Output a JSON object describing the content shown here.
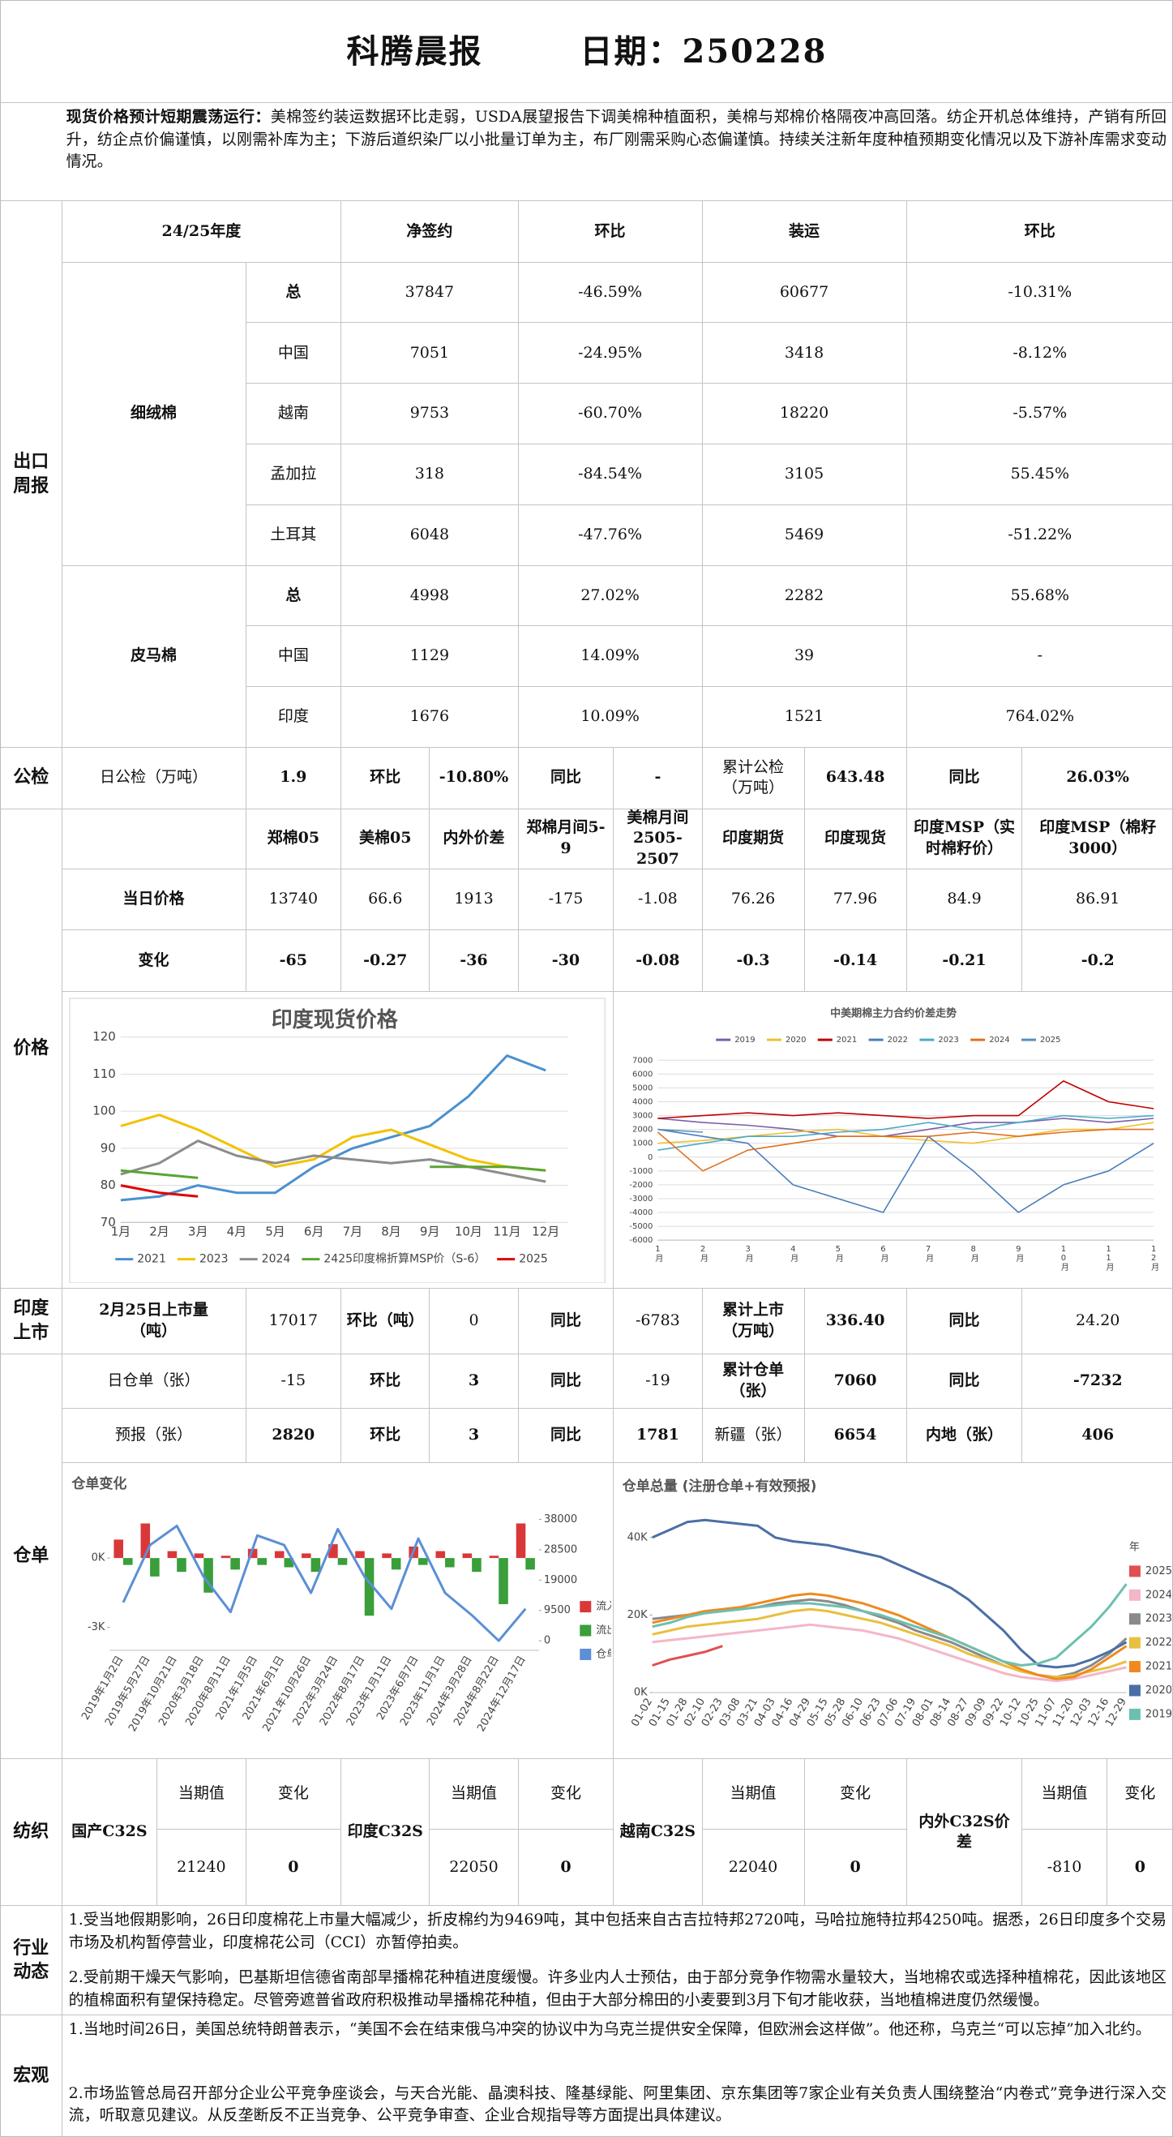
{
  "header": {
    "title": "科腾晨报",
    "date": "日期：250228"
  },
  "summary": {
    "label": "现货价格预计短期震荡运行：",
    "text": "美棉签约装运数据环比走弱，USDA展望报告下调美棉种植面积，美棉与郑棉价格隔夜冲高回落。纺企开机总体维持，产销有所回升，纺企点价偏谨慎，以刚需补库为主；下游后道织染厂以小批量订单为主，布厂刚需采购心态偏谨慎。持续关注新年度种植预期变化情况以及下游补库需求变动情况。"
  },
  "sections": {
    "export": "出口周报",
    "inspection": "公检",
    "price": "价格",
    "listing": "印度上市",
    "warehouse": "仓单",
    "textile": "纺织",
    "industry": "行业动态",
    "macro": "宏观"
  },
  "export_weekly": {
    "columns": [
      "24/25年度",
      "净签约",
      "环比",
      "装运",
      "环比"
    ],
    "groups": [
      {
        "name": "细绒棉",
        "rows": [
          [
            "总",
            "37847",
            "-46.59%",
            "60677",
            "-10.31%"
          ],
          [
            "中国",
            "7051",
            "-24.95%",
            "3418",
            "-8.12%"
          ],
          [
            "越南",
            "9753",
            "-60.70%",
            "18220",
            "-5.57%"
          ],
          [
            "孟加拉",
            "318",
            "-84.54%",
            "3105",
            "55.45%"
          ],
          [
            "土耳其",
            "6048",
            "-47.76%",
            "5469",
            "-51.22%"
          ]
        ]
      },
      {
        "name": "皮马棉",
        "rows": [
          [
            "总",
            "4998",
            "27.02%",
            "2282",
            "55.68%"
          ],
          [
            "中国",
            "1129",
            "14.09%",
            "39",
            "-"
          ],
          [
            "印度",
            "1676",
            "10.09%",
            "1521",
            "764.02%"
          ]
        ]
      }
    ]
  },
  "inspection": {
    "cells": [
      "日公检（万吨）",
      "1.9",
      "环比",
      "-10.80%",
      "同比",
      "-",
      "累计公检（万吨）",
      "643.48",
      "同比",
      "26.03%"
    ]
  },
  "price": {
    "columns": [
      "郑棉05",
      "美棉05",
      "内外价差",
      "郑棉月间5-9",
      "美棉月间2505-2507",
      "印度期货",
      "印度现货",
      "印度MSP（实时棉籽价）",
      "印度MSP（棉籽3000）"
    ],
    "rows": [
      {
        "label": "当日价格",
        "values": [
          "13740",
          "66.6",
          "1913",
          "-175",
          "-1.08",
          "76.26",
          "77.96",
          "84.9",
          "86.91"
        ]
      },
      {
        "label": "变化",
        "values": [
          "-65",
          "-0.27",
          "-36",
          "-30",
          "-0.08",
          "-0.3",
          "-0.14",
          "-0.21",
          "-0.2"
        ]
      }
    ]
  },
  "listing": {
    "cells": [
      "2月25日上市量（吨）",
      "17017",
      "环比（吨）",
      "0",
      "同比",
      "-6783",
      "累计上市（万吨）",
      "336.40",
      "同比",
      "24.20"
    ]
  },
  "warehouse": {
    "rows": [
      [
        "日仓单（张）",
        "-15",
        "环比",
        "3",
        "同比",
        "-19",
        "累计仓单（张）",
        "7060",
        "同比",
        "-7232"
      ],
      [
        "预报（张）",
        "2820",
        "环比",
        "3",
        "同比",
        "1781",
        "新疆（张）",
        "6654",
        "内地（张）",
        "406"
      ]
    ]
  },
  "textile": {
    "current": "当期值",
    "change": "变化",
    "items": [
      {
        "name": "国产C32S",
        "value": "21240",
        "delta": "0"
      },
      {
        "name": "印度C32S",
        "value": "22050",
        "delta": "0"
      },
      {
        "name": "越南C32S",
        "value": "22040",
        "delta": "0"
      },
      {
        "name": "内外C32S价差",
        "value": "-810",
        "delta": "0"
      }
    ]
  },
  "industry": {
    "items": [
      "1.受当地假期影响，26日印度棉花上市量大幅减少，折皮棉约为9469吨，其中包括来自古吉拉特邦2720吨，马哈拉施特拉邦4250吨。据悉，26日印度多个交易市场及机构暂停营业，印度棉花公司（CCI）亦暂停拍卖。",
      "2.受前期干燥天气影响，巴基斯坦信德省南部旱播棉花种植进度缓慢。许多业内人士预估，由于部分竞争作物需水量较大，当地棉农或选择种植棉花，因此该地区的植棉面积有望保持稳定。尽管旁遮普省政府积极推动旱播棉花种植，但由于大部分棉田的小麦要到3月下旬才能收获，当地植棉进度仍然缓慢。"
    ]
  },
  "macro": {
    "items": [
      "1.当地时间26日，美国总统特朗普表示，“美国不会在结束俄乌冲突的协议中为乌克兰提供安全保障，但欧洲会这样做”。他还称，乌克兰“可以忘掉”加入北约。",
      "2.市场监管总局召开部分企业公平竞争座谈会，与天合光能、晶澳科技、隆基绿能、阿里集团、京东集团等7家企业有关负责人围绕整治“内卷式”竞争进行深入交流，听取意见建议。从反垄断反不正当竞争、公平竞争审查、企业合规指导等方面提出具体建议。"
    ]
  },
  "chart_data": [
    {
      "type": "line",
      "title": "印度现货价格",
      "categories": [
        "1月",
        "2月",
        "3月",
        "4月",
        "5月",
        "6月",
        "7月",
        "8月",
        "9月",
        "10月",
        "11月",
        "12月"
      ],
      "ylim": [
        70,
        120
      ],
      "yticks": [
        70,
        80,
        90,
        100,
        110,
        120
      ],
      "grid": true,
      "legend": "bottom",
      "series": [
        {
          "name": "2021",
          "color": "#4a90d0",
          "values": [
            76,
            77,
            80,
            78,
            78,
            85,
            90,
            93,
            96,
            104,
            115,
            111
          ]
        },
        {
          "name": "2023",
          "color": "#f2c200",
          "values": [
            96,
            99,
            95,
            90,
            85,
            87,
            93,
            95,
            91,
            87,
            85,
            84
          ]
        },
        {
          "name": "2024",
          "color": "#8c8c8c",
          "values": [
            83,
            86,
            92,
            88,
            86,
            88,
            87,
            86,
            87,
            85,
            83,
            81
          ]
        },
        {
          "name": "2425印度棉折算MSP价（S-6）",
          "color": "#5aa532",
          "values": [
            84,
            83,
            82,
            null,
            null,
            null,
            null,
            null,
            85,
            85,
            85,
            84
          ]
        },
        {
          "name": "2025",
          "color": "#e00000",
          "values": [
            80,
            78,
            77,
            null,
            null,
            null,
            null,
            null,
            null,
            null,
            null,
            null
          ]
        }
      ]
    },
    {
      "type": "line",
      "title": "中美期棉主力合约价差走势",
      "categories": [
        "1月",
        "2月",
        "3月",
        "4月",
        "5月",
        "6月",
        "7月",
        "8月",
        "9月",
        "10月",
        "11月",
        "12月"
      ],
      "ylim": [
        -6000,
        7000
      ],
      "yticks": [
        -6000,
        -5000,
        -4000,
        -3000,
        -2000,
        -1000,
        0,
        1000,
        2000,
        3000,
        4000,
        5000,
        6000,
        7000
      ],
      "grid": true,
      "legend": "top",
      "series": [
        {
          "name": "2019",
          "color": "#7a5fa8",
          "values": [
            2800,
            2500,
            2300,
            2000,
            1500,
            1500,
            2000,
            2500,
            2500,
            2800,
            2500,
            2800
          ]
        },
        {
          "name": "2020",
          "color": "#f0c030",
          "values": [
            1000,
            1200,
            1500,
            1800,
            2000,
            1500,
            1200,
            1000,
            1500,
            2000,
            2000,
            2500
          ]
        },
        {
          "name": "2021",
          "color": "#c00000",
          "values": [
            2800,
            3000,
            3200,
            3000,
            3200,
            3000,
            2800,
            3000,
            3000,
            5500,
            4000,
            3500
          ]
        },
        {
          "name": "2022",
          "color": "#4a7ebb",
          "values": [
            2000,
            1500,
            1000,
            -2000,
            -3000,
            -4000,
            1500,
            -1000,
            -4000,
            -2000,
            -1000,
            1000
          ]
        },
        {
          "name": "2023",
          "color": "#4bacc6",
          "values": [
            500,
            1000,
            1500,
            1500,
            1800,
            2000,
            2500,
            2000,
            2500,
            3000,
            2800,
            3000
          ]
        },
        {
          "name": "2024",
          "color": "#e07020",
          "values": [
            1800,
            -1000,
            500,
            1000,
            1500,
            1500,
            1500,
            1800,
            1500,
            1800,
            2000,
            2000
          ]
        },
        {
          "name": "2025",
          "color": "#5b8ec1",
          "values": [
            2000,
            1800,
            null,
            null,
            null,
            null,
            null,
            null,
            null,
            null,
            null,
            null
          ]
        }
      ]
    },
    {
      "type": "combo",
      "title": "仓单变化",
      "categories": [
        "2019年1月2日",
        "2019年5月27日",
        "2019年10月21日",
        "2020年3月18日",
        "2020年8月11日",
        "2021年1月5日",
        "2021年6月1日",
        "2021年10月26日",
        "2022年3月24日",
        "2022年8月17日",
        "2023年1月11日",
        "2023年6月7日",
        "2023年11月1日",
        "2024年3月28日",
        "2024年8月22日",
        "2024年12月17日"
      ],
      "ylim": [
        -4000,
        2500
      ],
      "yticks": [
        {
          "value": 0,
          "label": "0K"
        },
        {
          "value": -3000,
          "label": "-3K"
        }
      ],
      "y2lim": [
        -3000,
        44000
      ],
      "y2ticks": [
        38000,
        28500,
        19000,
        9500,
        0
      ],
      "grid": false,
      "legend": "right",
      "series": [
        {
          "name": "流入",
          "type": "bar",
          "color": "#d9383a",
          "values": [
            800,
            1500,
            300,
            200,
            100,
            400,
            300,
            200,
            600,
            300,
            200,
            500,
            300,
            200,
            100,
            1500
          ]
        },
        {
          "name": "流出",
          "type": "bar",
          "color": "#3a9e3a",
          "values": [
            -300,
            -800,
            -600,
            -1500,
            -500,
            -300,
            -400,
            -600,
            -300,
            -2500,
            -500,
            -300,
            -400,
            -600,
            -2000,
            -500
          ]
        },
        {
          "name": "仓单",
          "type": "line",
          "axis": "y2",
          "color": "#5b8fd6",
          "values": [
            12000,
            30000,
            36000,
            20000,
            9000,
            33000,
            30000,
            15000,
            35000,
            20000,
            10000,
            32000,
            15000,
            8000,
            0,
            10000
          ]
        }
      ]
    },
    {
      "type": "line",
      "title": "仓单总量 (注册仓单+有效预报)",
      "categories": [
        "01-02",
        "01-15",
        "01-28",
        "02-10",
        "02-23",
        "03-08",
        "03-21",
        "04-03",
        "04-16",
        "04-29",
        "05-15",
        "05-28",
        "06-10",
        "06-23",
        "07-06",
        "07-19",
        "08-01",
        "08-14",
        "08-27",
        "09-09",
        "09-22",
        "10-12",
        "10-25",
        "11-07",
        "11-20",
        "12-03",
        "12-16",
        "12-29"
      ],
      "ylim": [
        0,
        45000
      ],
      "yticks": [
        {
          "value": 0,
          "label": "0K"
        },
        {
          "value": 20000,
          "label": "20K"
        },
        {
          "value": 40000,
          "label": "40K"
        }
      ],
      "grid": false,
      "legend": "right",
      "legend_title": "年",
      "series": [
        {
          "name": "2025",
          "color": "#e05050",
          "values": [
            7000,
            8500,
            9500,
            10500,
            12000,
            null,
            null,
            null,
            null,
            null,
            null,
            null,
            null,
            null,
            null,
            null,
            null,
            null,
            null,
            null,
            null,
            null,
            null,
            null,
            null,
            null,
            null,
            null
          ]
        },
        {
          "name": "2024",
          "color": "#f4b6c8",
          "values": [
            13000,
            13500,
            14000,
            14500,
            15000,
            15500,
            16000,
            16500,
            17000,
            17500,
            17000,
            16500,
            16000,
            15000,
            14000,
            12500,
            11000,
            9500,
            8000,
            6500,
            5000,
            4000,
            3500,
            3000,
            3500,
            4500,
            5500,
            6500
          ]
        },
        {
          "name": "2023",
          "color": "#8a8a8a",
          "values": [
            19000,
            19500,
            20000,
            20500,
            21000,
            21500,
            22000,
            23000,
            23500,
            24000,
            23500,
            22500,
            21000,
            19500,
            18000,
            16000,
            14500,
            13000,
            11000,
            9000,
            7000,
            5500,
            4500,
            4000,
            5000,
            7000,
            10000,
            14000
          ]
        },
        {
          "name": "2022",
          "color": "#e8c040",
          "values": [
            15000,
            16000,
            17000,
            17500,
            18000,
            18500,
            19000,
            20000,
            21000,
            21500,
            21000,
            20000,
            19000,
            18000,
            16500,
            15000,
            13500,
            12000,
            10000,
            8500,
            7000,
            5500,
            4500,
            4000,
            4500,
            5500,
            6500,
            8000
          ]
        },
        {
          "name": "2021",
          "color": "#ee8a20",
          "values": [
            18000,
            19000,
            20000,
            21000,
            21500,
            22000,
            23000,
            24000,
            25000,
            25500,
            25000,
            24000,
            23000,
            21500,
            20000,
            18000,
            16000,
            14000,
            12000,
            10000,
            8000,
            6000,
            4500,
            3500,
            4000,
            6000,
            9000,
            12000
          ]
        },
        {
          "name": "2020",
          "color": "#4a6fa5",
          "values": [
            40000,
            42000,
            44000,
            44500,
            44000,
            43500,
            43000,
            40000,
            39000,
            38500,
            38000,
            37000,
            36000,
            35000,
            33000,
            31000,
            29000,
            27000,
            24000,
            20000,
            16000,
            11000,
            7000,
            6500,
            7000,
            8500,
            10500,
            13000
          ]
        },
        {
          "name": "2019",
          "color": "#6cc0b0",
          "values": [
            17000,
            18000,
            19500,
            20500,
            21000,
            21500,
            22000,
            22500,
            23000,
            23000,
            22500,
            22000,
            21000,
            20000,
            18500,
            17000,
            15500,
            14000,
            12000,
            10000,
            8000,
            7000,
            7500,
            9000,
            13000,
            17000,
            22000,
            28000
          ]
        }
      ]
    }
  ]
}
